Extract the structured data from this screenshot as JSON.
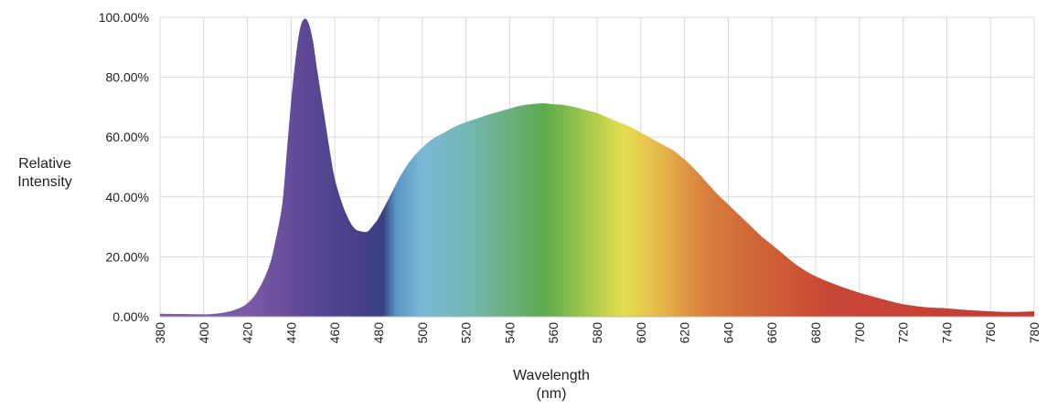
{
  "chart_data": {
    "type": "area",
    "title": "",
    "xlabel": "Wavelength",
    "xlabel_unit": "(nm)",
    "ylabel": "Relative",
    "ylabel_line2": "Intensity",
    "xlim": [
      380,
      780
    ],
    "ylim": [
      0,
      100
    ],
    "grid": true,
    "x_ticks": [
      380,
      400,
      420,
      440,
      460,
      480,
      500,
      520,
      540,
      560,
      580,
      600,
      620,
      640,
      660,
      680,
      700,
      720,
      740,
      760,
      780
    ],
    "y_ticks": [
      0,
      20,
      40,
      60,
      80,
      100
    ],
    "y_tick_labels": [
      "0.00%",
      "20.00%",
      "40.00%",
      "60.00%",
      "80.00%",
      "100.00%"
    ],
    "series": [
      {
        "x": [
          380,
          390,
          400,
          405,
          410,
          415,
          420,
          425,
          430,
          433,
          436,
          438,
          440,
          442,
          444,
          446,
          448,
          450,
          452,
          455,
          458,
          460,
          463,
          466,
          469,
          472,
          475,
          478,
          480,
          485,
          490,
          495,
          500,
          505,
          510,
          515,
          520,
          525,
          530,
          535,
          540,
          545,
          550,
          555,
          560,
          565,
          570,
          575,
          580,
          585,
          590,
          595,
          600,
          605,
          610,
          615,
          620,
          625,
          630,
          635,
          640,
          645,
          650,
          655,
          660,
          665,
          670,
          675,
          680,
          690,
          700,
          710,
          720,
          730,
          740,
          750,
          760,
          770,
          780
        ],
        "y": [
          1.0,
          0.9,
          0.8,
          1.0,
          1.5,
          2.5,
          4.5,
          9,
          17,
          26,
          38,
          55,
          72,
          86,
          96,
          99.5,
          98,
          92,
          82,
          68,
          54,
          46,
          38.5,
          33,
          29.5,
          28.5,
          28.5,
          31,
          33,
          40,
          47,
          52.5,
          56.5,
          59.5,
          61.5,
          63.5,
          65,
          66.2,
          67.5,
          68.5,
          69.5,
          70.5,
          71,
          71.3,
          71,
          70.7,
          70,
          69,
          68,
          66.5,
          65,
          63.5,
          61.5,
          59.5,
          57.5,
          55.5,
          52.5,
          49,
          45,
          41,
          37.5,
          34,
          30.5,
          27,
          24,
          21,
          18,
          15.5,
          13.5,
          10.5,
          8,
          6,
          4.2,
          3.2,
          2.8,
          2.2,
          1.8,
          1.6,
          1.8
        ]
      }
    ]
  }
}
